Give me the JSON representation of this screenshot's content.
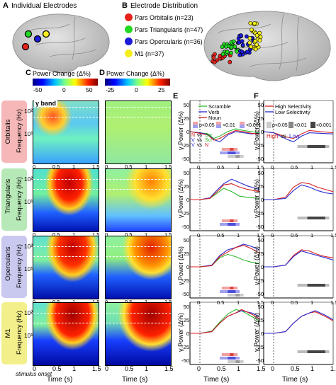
{
  "panel_a": {
    "letter": "A",
    "title": "Individual Electrodes"
  },
  "panel_b": {
    "letter": "B",
    "title": "Electrode Distribution",
    "legend": [
      {
        "label": "Pars Orbitalis (n=23)",
        "color": "#e8231c"
      },
      {
        "label": "Pars Triangularis (n=47)",
        "color": "#22d822"
      },
      {
        "label": "Pars Opercularis (n=36)",
        "color": "#1b1bd8"
      },
      {
        "label": "M1 (n=37)",
        "color": "#f5ee1c"
      }
    ]
  },
  "panel_c": {
    "letter": "C",
    "title": "Power Change (Δ%)",
    "ticks": [
      "-50",
      "0",
      "50"
    ]
  },
  "panel_d": {
    "letter": "D",
    "title": "Power Change (Δ%)",
    "ticks": [
      "-25",
      "0",
      "25"
    ]
  },
  "gamma_band_label": "γ band",
  "rows": [
    {
      "region": "Orbitalis",
      "color": "#f5b7b7"
    },
    {
      "region": "Triangularis",
      "color": "#b7e8b7"
    },
    {
      "region": "Opercularis",
      "color": "#c9c9ef"
    },
    {
      "region": "M1",
      "color": "#f3ef8a"
    }
  ],
  "freq_axis_label": "Frequency (Hz)",
  "freq_ticks": [
    "10²",
    "10¹"
  ],
  "time_axis": {
    "label": "Time (s)",
    "ticks": [
      "0",
      "0.5",
      "1",
      "1.5"
    ],
    "onset": "stimulus onset"
  },
  "panel_e": {
    "letter": "E",
    "legend": [
      {
        "label": "Scramble",
        "color": "#2db82d"
      },
      {
        "label": "Verb",
        "color": "#2b2bd0"
      },
      {
        "label": "Noun",
        "color": "#d82020"
      }
    ],
    "pvals": [
      "p<0.05",
      "<0.01",
      "<0.001"
    ],
    "comparisons": [
      {
        "a": "N",
        "b": "Scr",
        "ca": "#d82020",
        "cb": "#2db82d"
      },
      {
        "a": "V",
        "b": "Scr",
        "ca": "#2b2bd0",
        "cb": "#2db82d"
      },
      {
        "a": "V",
        "b": "N",
        "ca": "#2b2bd0",
        "cb": "#d82020"
      }
    ],
    "ylabel": "γ Power (Δ%)",
    "yticks": [
      "50",
      "25",
      "0",
      "-25",
      "-50"
    ]
  },
  "panel_f": {
    "letter": "F",
    "legend": [
      {
        "label": "High Selectivity",
        "color": "#d82020"
      },
      {
        "label": "Low Selectivity",
        "color": "#2b2bd0"
      }
    ],
    "pvals": [
      "p<0.05",
      "<0.01",
      "<0.001"
    ],
    "high": "High",
    "vs": "vs",
    "low": "Low"
  }
}
